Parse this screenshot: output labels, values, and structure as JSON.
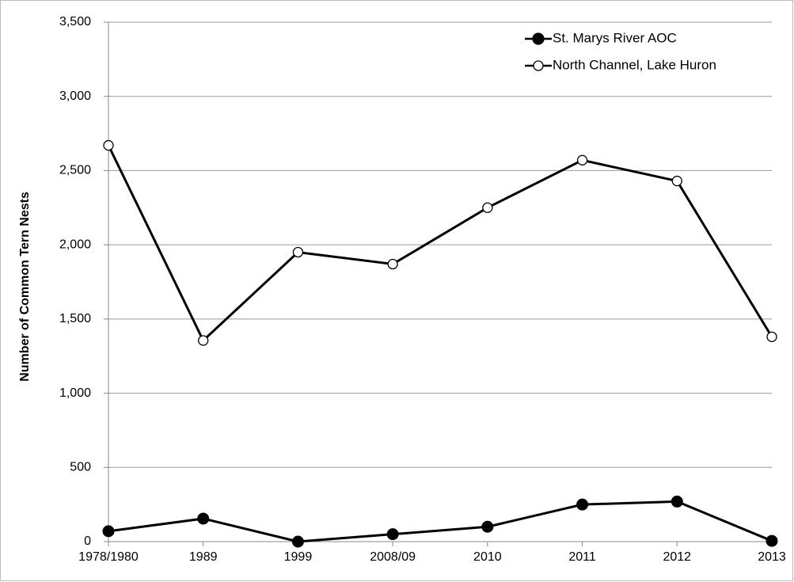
{
  "chart_data": {
    "type": "line",
    "y_label": "Number of Common Tern Nests",
    "categories": [
      "1978/1980",
      "1989",
      "1999",
      "2008/09",
      "2010",
      "2011",
      "2012",
      "2013"
    ],
    "series": [
      {
        "name": "St. Marys River AOC",
        "color": "#000000",
        "marker": "filled",
        "values": [
          70,
          155,
          0,
          50,
          100,
          250,
          270,
          5
        ]
      },
      {
        "name": "North Channel, Lake Huron",
        "color": "#000000",
        "marker": "open",
        "values": [
          2670,
          1355,
          1950,
          1870,
          2250,
          2570,
          2430,
          1380
        ]
      }
    ],
    "ylim": [
      0,
      3500
    ],
    "yticks": [
      0,
      500,
      {
        "value": 1000,
        "label": "1,000"
      },
      {
        "value": 1500,
        "label": "1,500"
      },
      {
        "value": 2000,
        "label": "2,000"
      },
      {
        "value": 2500,
        "label": "2,500"
      },
      {
        "value": 3000,
        "label": "3,000"
      },
      {
        "value": 3500,
        "label": "3,500"
      }
    ],
    "grid": true,
    "legend": "top-right"
  }
}
